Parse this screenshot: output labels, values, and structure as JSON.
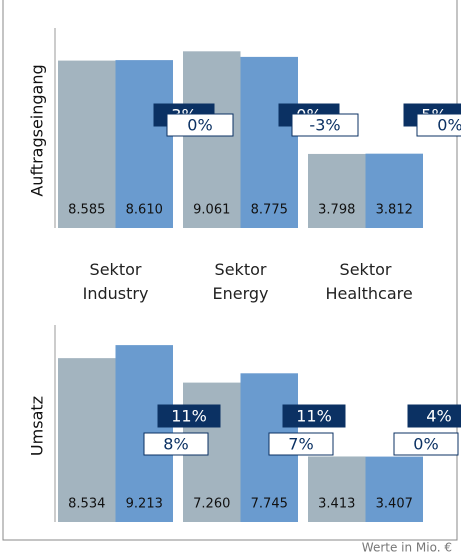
{
  "chart_data": [
    {
      "type": "bar",
      "axis_label": "Auftragseingang",
      "categories": [
        "Sektor Industry",
        "Sektor Energy",
        "Sektor Healthcare"
      ],
      "series": [
        {
          "color": "#a3b4bf",
          "values": [
            8585,
            9061,
            3798
          ],
          "value_labels": [
            "8.585",
            "9.061",
            "3.798"
          ]
        },
        {
          "color": "#6a9bcf",
          "values": [
            8610,
            8775,
            3812
          ],
          "value_labels": [
            "8.610",
            "8.775",
            "3.812"
          ]
        }
      ],
      "annotations": [
        {
          "color": "#0b3163",
          "values": [
            3,
            0,
            5
          ],
          "value_labels": [
            "3%",
            "0%",
            "5%"
          ]
        },
        {
          "color": "#ffffff",
          "values": [
            0,
            -3,
            0
          ],
          "value_labels": [
            "0%",
            "-3%",
            "0%"
          ]
        }
      ],
      "ylim": [
        0,
        10000
      ]
    },
    {
      "type": "bar",
      "axis_label": "Umsatz",
      "series": [
        {
          "color": "#a3b4bf",
          "values": [
            8534,
            7260,
            3413
          ],
          "value_labels": [
            "8.534",
            "7.260",
            "3.413"
          ]
        },
        {
          "color": "#6a9bcf",
          "values": [
            9213,
            7745,
            3407
          ],
          "value_labels": [
            "9.213",
            "7.745",
            "3.407"
          ]
        }
      ],
      "annotations": [
        {
          "color": "#0b3163",
          "values": [
            11,
            11,
            4
          ],
          "value_labels": [
            "11%",
            "11%",
            "4%"
          ]
        },
        {
          "color": "#ffffff",
          "values": [
            8,
            7,
            0
          ],
          "value_labels": [
            "8%",
            "7%",
            "0%"
          ]
        }
      ],
      "ylim": [
        0,
        10000
      ]
    }
  ],
  "footnote": "Werte in Mio. €"
}
